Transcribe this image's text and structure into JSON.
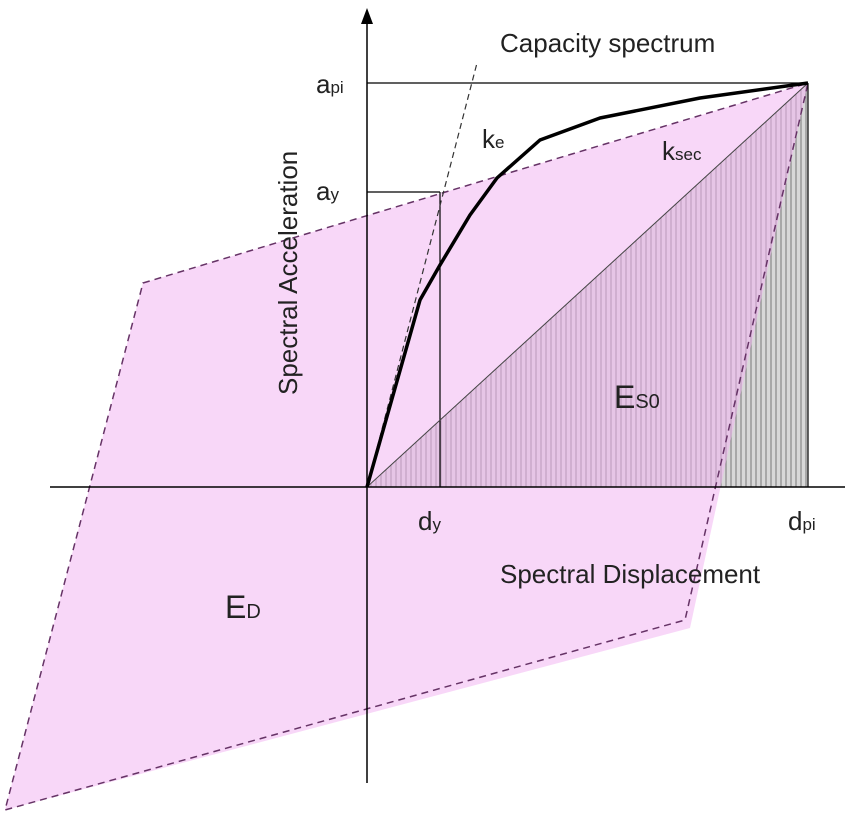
{
  "title": "Capacity spectrum",
  "y_axis_label": "Spectral Acceleration",
  "x_axis_label": "Spectral Displacement",
  "labels": {
    "a_pi": {
      "main": "a",
      "sub": "pi"
    },
    "a_y": {
      "main": "a",
      "sub": "y"
    },
    "k_e": {
      "main": "k",
      "sub": "e"
    },
    "k_sec": {
      "main": "k",
      "sub": "sec"
    },
    "E_S0": {
      "main": "E",
      "sub": "S0"
    },
    "E_D": {
      "main": "E",
      "sub": "D"
    },
    "d_y": {
      "main": "d",
      "sub": "y"
    },
    "d_pi": {
      "main": "d",
      "sub": "pi"
    }
  }
}
